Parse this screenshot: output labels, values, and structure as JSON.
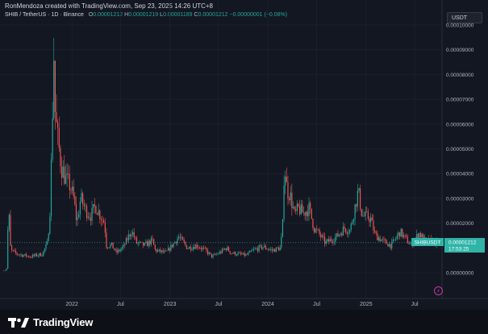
{
  "header": {
    "attribution": "RonMendoza created with TradingView.com, Sep 23, 2025 14:26 UTC+8",
    "symbol": "SHIB / TetherUS · 1D · Binance",
    "o_label": "O",
    "o_value": "0.00001212",
    "h_label": "H",
    "h_value": "0.00001219",
    "l_label": "L",
    "l_value": "0.00001189",
    "c_label": "C",
    "c_value": "0.00001212",
    "change": "−0.00000001 (−0.08%)"
  },
  "toolbar": {
    "currency": "USDT"
  },
  "price_label": {
    "symbol": "SHIBUSDT",
    "price": "0.00001212",
    "countdown": "17:53:25"
  },
  "footer": {
    "brand": "TradingView"
  },
  "colors": {
    "up": "#26a69a",
    "down": "#ef5350",
    "background": "#131722",
    "grid": "#1f2433",
    "accent": "#2fb4a8"
  },
  "chart_data": {
    "type": "candlestick",
    "y_ticks": [
      "0.00000000",
      "0.00001000",
      "0.00002000",
      "0.00003000",
      "0.00004000",
      "0.00005000",
      "0.00006000",
      "0.00007000",
      "0.00008000",
      "0.00009000",
      "0.00010000"
    ],
    "x_ticks": [
      {
        "label": "2022",
        "date": "2022-01-01"
      },
      {
        "label": "Jul",
        "date": "2022-07-01"
      },
      {
        "label": "2023",
        "date": "2023-01-01"
      },
      {
        "label": "Jul",
        "date": "2023-07-01"
      },
      {
        "label": "2024",
        "date": "2024-01-01"
      },
      {
        "label": "Jul",
        "date": "2024-07-01"
      },
      {
        "label": "2025",
        "date": "2025-01-01"
      },
      {
        "label": "Jul",
        "date": "2025-07-01"
      }
    ],
    "ylim": [
      0,
      0.0001
    ],
    "xlim": [
      "2021-04-20",
      "2025-09-23"
    ],
    "last_price": 1.212e-05,
    "price_path": [
      [
        "2021-04-20",
        8e-07
      ],
      [
        "2021-05-01",
        9e-07
      ],
      [
        "2021-05-08",
        2.5e-06
      ],
      [
        "2021-05-11",
        3e-05
      ],
      [
        "2021-05-20",
        9e-06
      ],
      [
        "2021-06-15",
        7.5e-06
      ],
      [
        "2021-08-01",
        6.5e-06
      ],
      [
        "2021-09-15",
        7.5e-06
      ],
      [
        "2021-10-05",
        1.2e-05
      ],
      [
        "2021-10-15",
        2.8e-05
      ],
      [
        "2021-10-28",
        8.85e-05
      ],
      [
        "2021-11-02",
        6.5e-05
      ],
      [
        "2021-11-10",
        5.5e-05
      ],
      [
        "2021-11-25",
        4.3e-05
      ],
      [
        "2021-12-10",
        3.8e-05
      ],
      [
        "2021-12-28",
        3.5e-05
      ],
      [
        "2022-01-10",
        3e-05
      ],
      [
        "2022-01-22",
        2e-05
      ],
      [
        "2022-02-05",
        3e-05
      ],
      [
        "2022-02-25",
        2.5e-05
      ],
      [
        "2022-03-15",
        2.3e-05
      ],
      [
        "2022-04-01",
        2.7e-05
      ],
      [
        "2022-04-15",
        2.4e-05
      ],
      [
        "2022-05-05",
        2e-05
      ],
      [
        "2022-05-12",
        1.1e-05
      ],
      [
        "2022-06-01",
        1.1e-05
      ],
      [
        "2022-06-18",
        8e-06
      ],
      [
        "2022-07-15",
        1.05e-05
      ],
      [
        "2022-08-14",
        1.7e-05
      ],
      [
        "2022-09-01",
        1.2e-05
      ],
      [
        "2022-10-01",
        1.1e-05
      ],
      [
        "2022-10-30",
        1.3e-05
      ],
      [
        "2022-11-10",
        9e-06
      ],
      [
        "2022-12-20",
        8e-06
      ],
      [
        "2023-01-15",
        1.15e-05
      ],
      [
        "2023-02-05",
        1.45e-05
      ],
      [
        "2023-03-10",
        1e-05
      ],
      [
        "2023-04-15",
        1.1e-05
      ],
      [
        "2023-05-15",
        9e-06
      ],
      [
        "2023-06-10",
        6.5e-06
      ],
      [
        "2023-07-15",
        8.5e-06
      ],
      [
        "2023-08-01",
        1e-05
      ],
      [
        "2023-08-20",
        8e-06
      ],
      [
        "2023-10-15",
        7e-06
      ],
      [
        "2023-11-10",
        9e-06
      ],
      [
        "2023-12-15",
        1.05e-05
      ],
      [
        "2024-01-20",
        9e-06
      ],
      [
        "2024-02-20",
        1e-05
      ],
      [
        "2024-02-28",
        2e-05
      ],
      [
        "2024-03-05",
        4.5e-05
      ],
      [
        "2024-03-15",
        3.3e-05
      ],
      [
        "2024-03-25",
        3.2e-05
      ],
      [
        "2024-04-13",
        2.3e-05
      ],
      [
        "2024-04-25",
        2.6e-05
      ],
      [
        "2024-05-15",
        2.4e-05
      ],
      [
        "2024-06-05",
        2.6e-05
      ],
      [
        "2024-06-25",
        1.75e-05
      ],
      [
        "2024-07-10",
        1.6e-05
      ],
      [
        "2024-08-05",
        1.2e-05
      ],
      [
        "2024-09-15",
        1.45e-05
      ],
      [
        "2024-10-15",
        1.8e-05
      ],
      [
        "2024-11-05",
        1.7e-05
      ],
      [
        "2024-11-20",
        2.5e-05
      ],
      [
        "2024-12-05",
        3.3e-05
      ],
      [
        "2024-12-20",
        2.3e-05
      ],
      [
        "2025-01-20",
        2.2e-05
      ],
      [
        "2025-02-05",
        1.55e-05
      ],
      [
        "2025-03-10",
        1.25e-05
      ],
      [
        "2025-04-07",
        1.1e-05
      ],
      [
        "2025-04-25",
        1.4e-05
      ],
      [
        "2025-05-10",
        1.65e-05
      ],
      [
        "2025-06-20",
        1.1e-05
      ],
      [
        "2025-07-20",
        1.6e-05
      ],
      [
        "2025-08-10",
        1.3e-05
      ],
      [
        "2025-09-23",
        1.21e-05
      ]
    ]
  }
}
